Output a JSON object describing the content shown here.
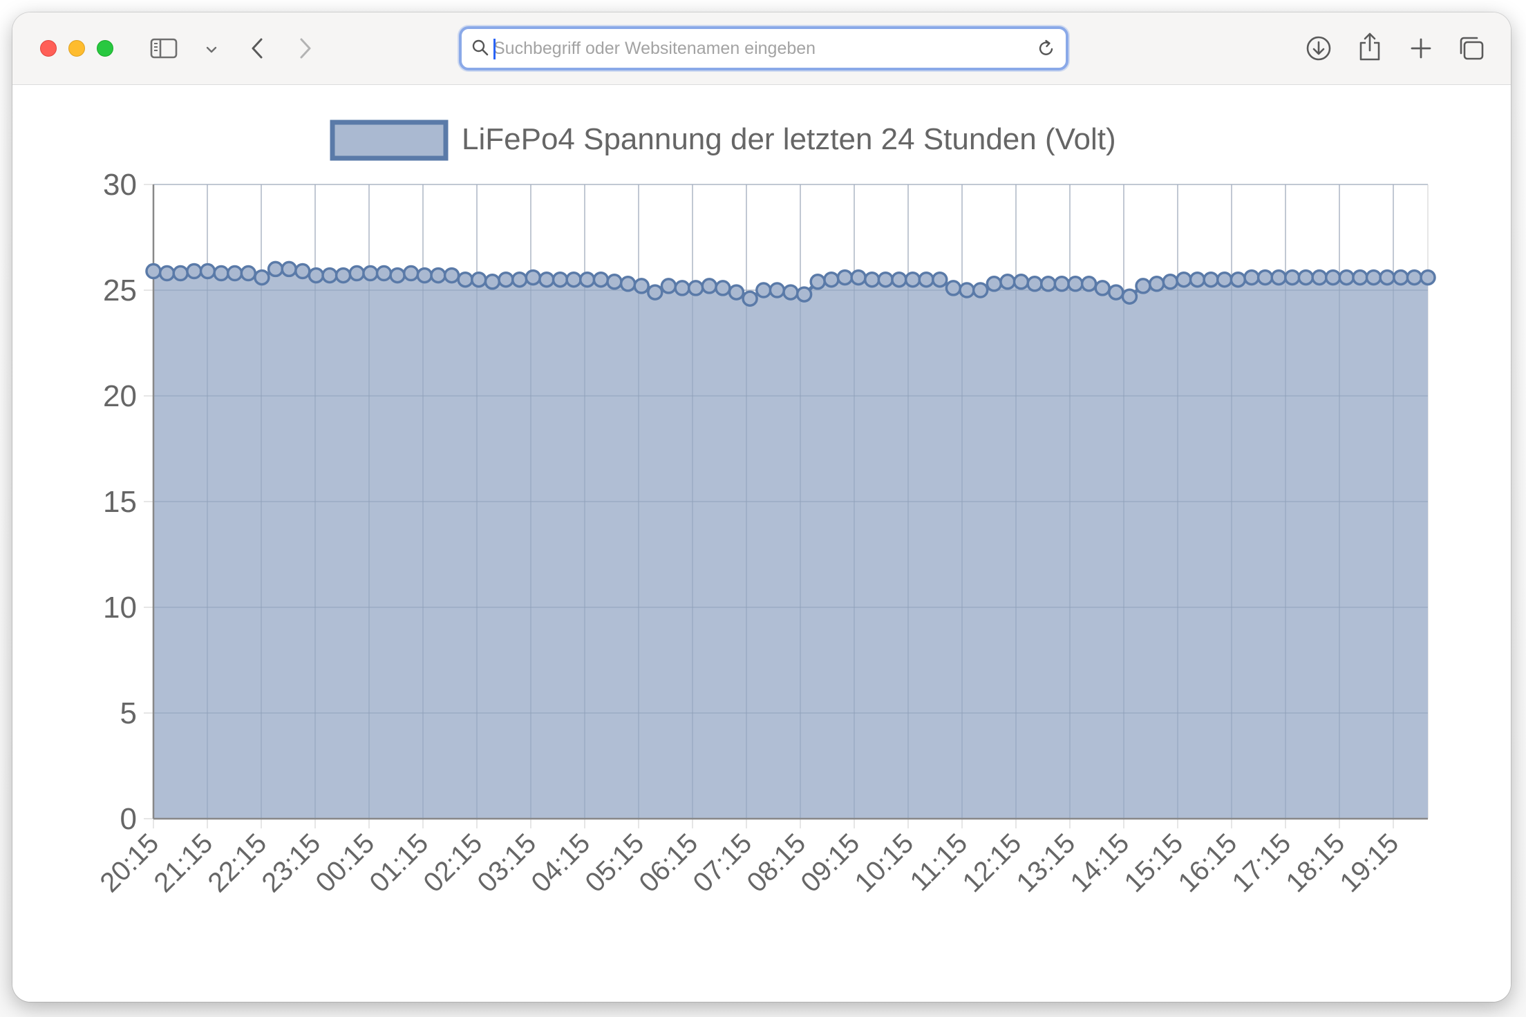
{
  "browser": {
    "window_controls": [
      "close",
      "minimize",
      "zoom"
    ],
    "toolbar_icons": {
      "sidebar": "sidebar-icon",
      "tab_menu": "chevron-down-icon",
      "back": "chevron-left-icon",
      "forward": "chevron-right-icon",
      "search": "magnifier-icon",
      "reload": "reload-icon",
      "downloads": "download-icon",
      "share": "share-icon",
      "new_tab": "plus-icon",
      "tab_overview": "tabs-overview-icon"
    },
    "address_bar": {
      "placeholder": "Suchbegriff oder Websitenamen eingeben",
      "value": ""
    }
  },
  "chart_data": {
    "type": "area",
    "legend": {
      "label": "LiFePo4 Spannung der letzten 24 Stunden (Volt)",
      "position": "top"
    },
    "ylim": [
      0,
      30
    ],
    "yticks": [
      0,
      5,
      10,
      15,
      20,
      25,
      30
    ],
    "xtick_labels": [
      "20:15",
      "21:15",
      "22:15",
      "23:15",
      "00:15",
      "01:15",
      "02:15",
      "03:15",
      "04:15",
      "05:15",
      "06:15",
      "07:15",
      "08:15",
      "09:15",
      "10:15",
      "11:15",
      "12:15",
      "13:15",
      "14:15",
      "15:15",
      "16:15",
      "17:15",
      "18:15",
      "19:15"
    ],
    "grid": true,
    "colors": {
      "fill": "#aab9d1",
      "line": "#5a7aa8",
      "point_fill": "#aab9d1",
      "grid": "#e6e6e6",
      "axis": "#888888",
      "text": "#666666"
    },
    "series": [
      {
        "name": "LiFePo4 Spannung der letzten 24 Stunden (Volt)",
        "values": [
          25.9,
          25.8,
          25.8,
          25.9,
          25.9,
          25.8,
          25.8,
          25.8,
          25.6,
          26.0,
          26.0,
          25.9,
          25.7,
          25.7,
          25.7,
          25.8,
          25.8,
          25.8,
          25.7,
          25.8,
          25.7,
          25.7,
          25.7,
          25.5,
          25.5,
          25.4,
          25.5,
          25.5,
          25.6,
          25.5,
          25.5,
          25.5,
          25.5,
          25.5,
          25.4,
          25.3,
          25.2,
          24.9,
          25.2,
          25.1,
          25.1,
          25.2,
          25.1,
          24.9,
          24.6,
          25.0,
          25.0,
          24.9,
          24.8,
          25.4,
          25.5,
          25.6,
          25.6,
          25.5,
          25.5,
          25.5,
          25.5,
          25.5,
          25.5,
          25.1,
          25.0,
          25.0,
          25.3,
          25.4,
          25.4,
          25.3,
          25.3,
          25.3,
          25.3,
          25.3,
          25.1,
          24.9,
          24.7,
          25.2,
          25.3,
          25.4,
          25.5,
          25.5,
          25.5,
          25.5,
          25.5,
          25.6,
          25.6,
          25.6,
          25.6,
          25.6,
          25.6,
          25.6,
          25.6,
          25.6,
          25.6,
          25.6,
          25.6,
          25.6,
          25.6
        ]
      }
    ]
  }
}
